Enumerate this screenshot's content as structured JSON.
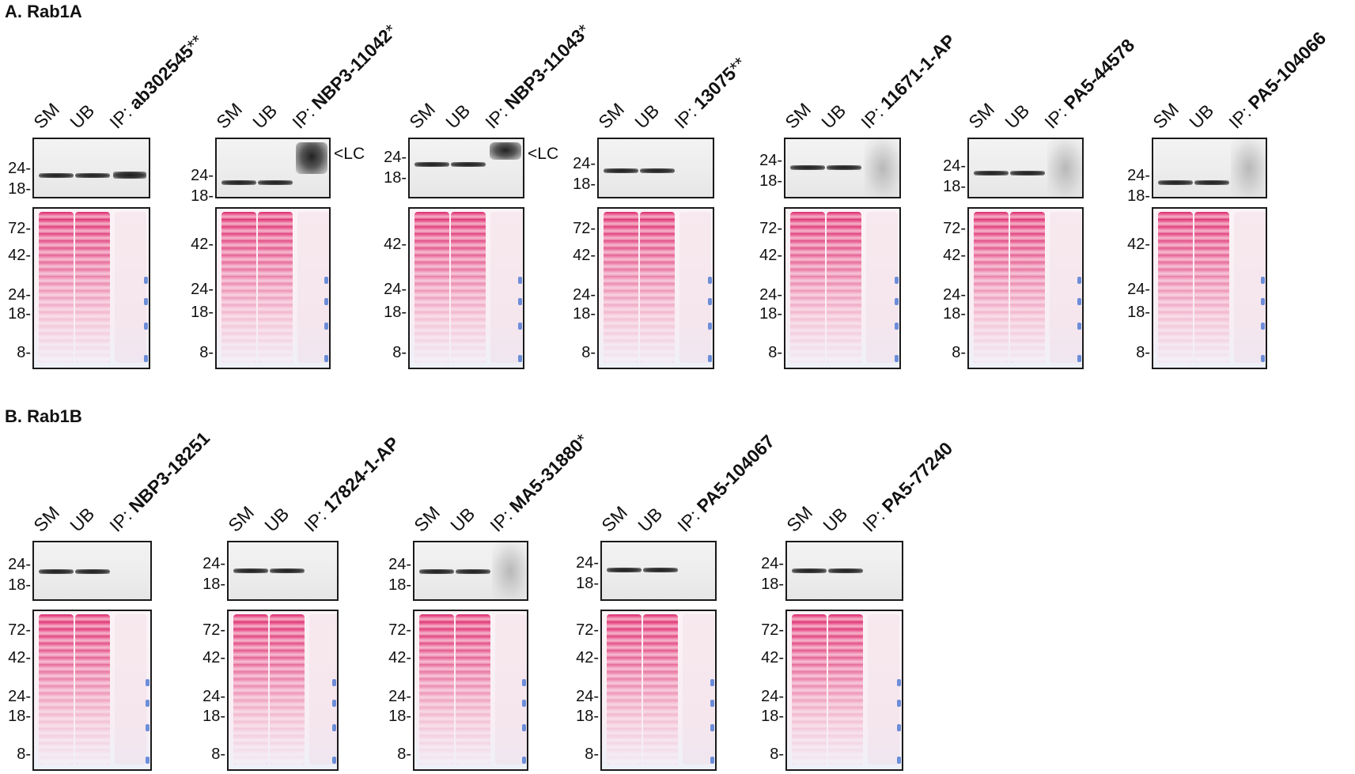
{
  "sections": [
    {
      "title": "A.  Rab1A",
      "panels": [
        {
          "ip": "ab302545",
          "mark": "**"
        },
        {
          "ip": "NBP3-11042",
          "mark": "*"
        },
        {
          "ip": "NBP3-11043",
          "mark": "*"
        },
        {
          "ip": "13075",
          "mark": "**"
        },
        {
          "ip": "11671-1-AP",
          "mark": ""
        },
        {
          "ip": "PA5-44578",
          "mark": ""
        },
        {
          "ip": "PA5-104066",
          "mark": ""
        }
      ]
    },
    {
      "title": "B.  Rab1B",
      "panels": [
        {
          "ip": "NBP3-18251",
          "mark": ""
        },
        {
          "ip": "17824-1-AP",
          "mark": ""
        },
        {
          "ip": "MA5-31880",
          "mark": "*"
        },
        {
          "ip": "PA5-104067",
          "mark": ""
        },
        {
          "ip": "PA5-77240",
          "mark": ""
        }
      ]
    }
  ],
  "lanes": {
    "sm": "SM",
    "ub": "UB",
    "ip_prefix": "IP: "
  },
  "wb_markers": [
    "24-",
    "18-"
  ],
  "stain_markers": [
    "72-",
    "42-",
    "24-",
    "18-",
    "8-"
  ],
  "stain_markers_no72": [
    "42-",
    "24-",
    "18-",
    "8-"
  ],
  "lc_label": "<LC",
  "colors": {
    "stain": "#d81e64",
    "band": "#222222",
    "marker": "#3f6fd0"
  }
}
